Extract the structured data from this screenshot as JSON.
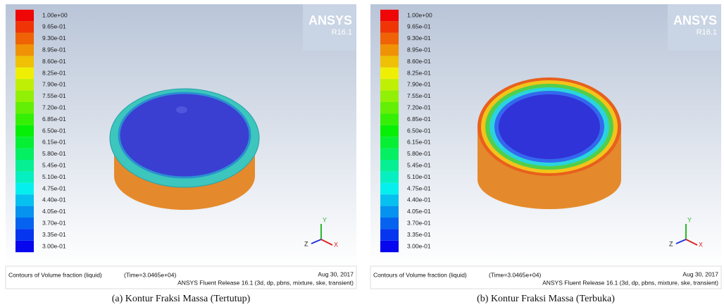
{
  "panels": [
    {
      "colorbar_labels": [
        "1.00e+00",
        "9.65e-01",
        "9.30e-01",
        "8.95e-01",
        "8.60e-01",
        "8.25e-01",
        "7.90e-01",
        "7.55e-01",
        "7.20e-01",
        "6.85e-01",
        "6.50e-01",
        "6.15e-01",
        "5.80e-01",
        "5.45e-01",
        "5.10e-01",
        "4.75e-01",
        "4.40e-01",
        "4.05e-01",
        "3.70e-01",
        "3.35e-01",
        "3.00e-01"
      ],
      "logo": "ANSYS",
      "version": "R16.1",
      "title": "Contours of Volume fraction (liquid)",
      "time": "(Time=3.0465e+04)",
      "date": "Aug 30, 2017",
      "release": "ANSYS Fluent Release 16.1 (3d, dp, pbns, mixture, ske, transient)",
      "axis_labels": [
        "Y",
        "Z",
        "X"
      ],
      "caption": "(a) Kontur Fraksi Massa (Tertutup)"
    },
    {
      "colorbar_labels": [
        "1.00e+00",
        "9.65e-01",
        "9.30e-01",
        "8.95e-01",
        "8.60e-01",
        "8.25e-01",
        "7.90e-01",
        "7.55e-01",
        "7.20e-01",
        "6.85e-01",
        "6.50e-01",
        "6.15e-01",
        "5.80e-01",
        "5.45e-01",
        "5.10e-01",
        "4.75e-01",
        "4.40e-01",
        "4.05e-01",
        "3.70e-01",
        "3.35e-01",
        "3.00e-01"
      ],
      "logo": "ANSYS",
      "version": "R16.1",
      "title": "Contours of Volume fraction (liquid)",
      "time": "(Time=3.0465e+04)",
      "date": "Aug 30, 2017",
      "release": "ANSYS Fluent Release 16.1 (3d, dp, pbns, mixture, ske, transient)",
      "axis_labels": [
        "Y",
        "Z",
        "X"
      ],
      "caption": "(b) Kontur Fraksi Massa (Terbuka)"
    }
  ]
}
